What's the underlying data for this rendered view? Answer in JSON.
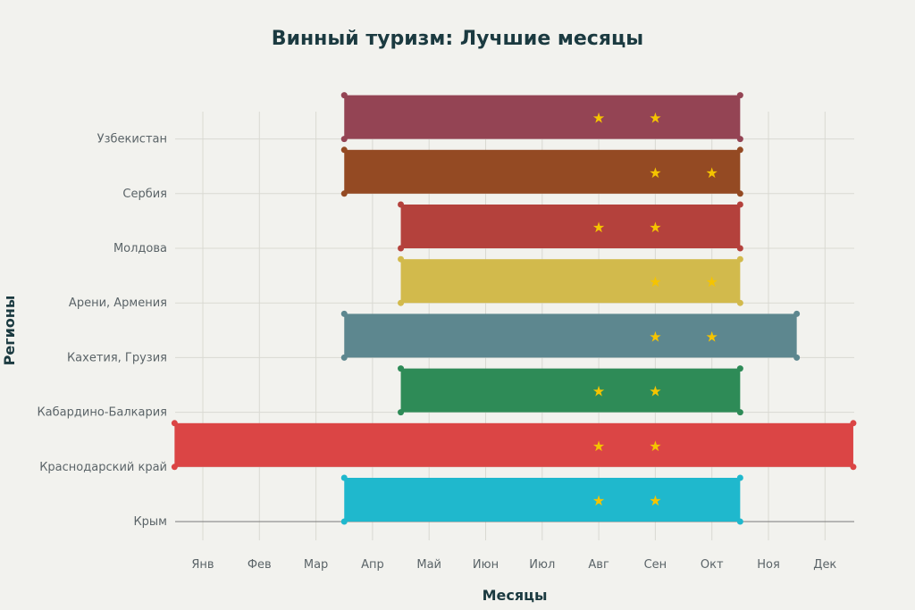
{
  "chart_data": {
    "type": "gantt",
    "title": "Винный туризм: Лучшие месяцы",
    "xlabel": "Месяцы",
    "ylabel": "Регионы",
    "months": [
      "Янв",
      "Фев",
      "Мар",
      "Апр",
      "Май",
      "Июн",
      "Июл",
      "Авг",
      "Сен",
      "Окт",
      "Ноя",
      "Дек"
    ],
    "grid": true,
    "series": [
      {
        "name": "Крым",
        "start": 3.5,
        "end": 10.5,
        "color": "#1fb8cd",
        "stars": [
          8,
          9
        ]
      },
      {
        "name": "Краснодарский край",
        "start": 0.5,
        "end": 12.5,
        "color": "#db4545",
        "stars": [
          8,
          9
        ]
      },
      {
        "name": "Кабардино-Балкария",
        "start": 4.5,
        "end": 10.5,
        "color": "#2e8b57",
        "stars": [
          8,
          9
        ]
      },
      {
        "name": "Кахетия, Грузия",
        "start": 3.5,
        "end": 11.5,
        "color": "#5d878f",
        "stars": [
          9,
          10
        ]
      },
      {
        "name": "Арени, Армения",
        "start": 4.5,
        "end": 10.5,
        "color": "#d2ba4c",
        "stars": [
          9,
          10
        ]
      },
      {
        "name": "Молдова",
        "start": 4.5,
        "end": 10.5,
        "color": "#b4413c",
        "stars": [
          8,
          9
        ]
      },
      {
        "name": "Сербия",
        "start": 3.5,
        "end": 10.5,
        "color": "#944a23",
        "stars": [
          9,
          10
        ]
      },
      {
        "name": "Узбекистан",
        "start": 3.5,
        "end": 10.5,
        "color": "#944454",
        "stars": [
          8,
          9
        ]
      }
    ]
  }
}
